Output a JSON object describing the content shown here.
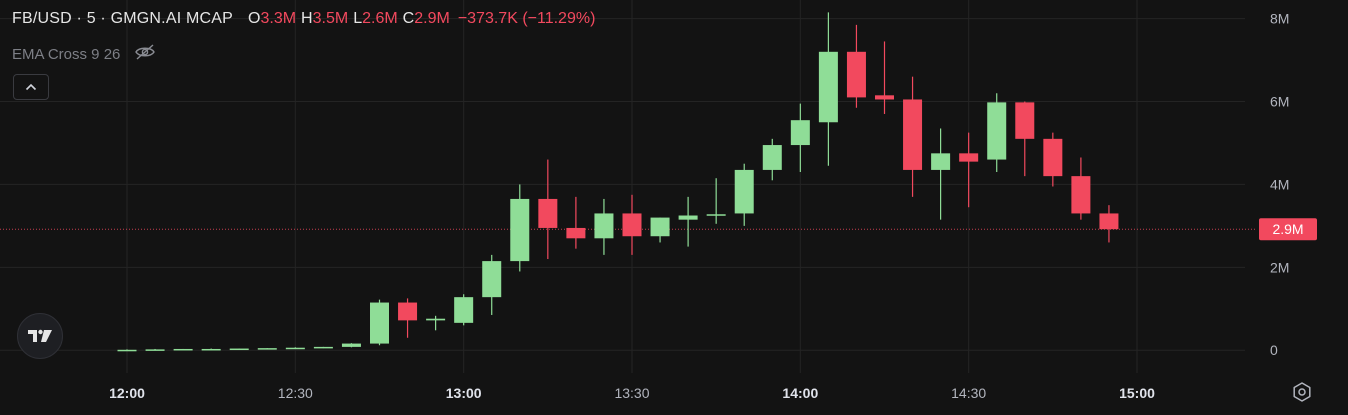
{
  "legend": {
    "symbol": "FB/USD · 5 · GMGN.AI MCAP",
    "open_label": "O",
    "open_value": "3.3M",
    "high_label": "H",
    "high_value": "3.5M",
    "low_label": "L",
    "low_value": "2.6M",
    "close_label": "C",
    "close_value": "2.9M",
    "change": "−373.7K (−11.29%)"
  },
  "indicator": {
    "label": "EMA Cross 9 26"
  },
  "icons": [
    "eye-off-icon",
    "chevron-up-icon",
    "tradingview-logo-icon",
    "gear-icon"
  ],
  "colors": {
    "background": "#131313",
    "up": "#8fdd97",
    "down": "#f2495e",
    "grid": "#242424",
    "axis_text": "#b2b5be"
  },
  "chart_data": {
    "type": "candlestick",
    "title": "FB/USD · 5 · GMGN.AI MCAP",
    "x_ticks": [
      "12:00",
      "12:30",
      "13:00",
      "13:30",
      "14:00",
      "14:30",
      "15:00"
    ],
    "y_ticks": [
      "0",
      "2M",
      "4M",
      "6M",
      "8M"
    ],
    "ylim": [
      -0.55,
      8.45
    ],
    "y_unit": "M",
    "grid": true,
    "last_price_label": "2.9M",
    "last_price": 2.92,
    "interval_minutes": 5,
    "candles": [
      {
        "time": "12:00",
        "o": 0.0,
        "h": 0.02,
        "l": 0.0,
        "c": 0.01
      },
      {
        "time": "12:05",
        "o": 0.01,
        "h": 0.03,
        "l": 0.0,
        "c": 0.02
      },
      {
        "time": "12:10",
        "o": 0.02,
        "h": 0.03,
        "l": 0.01,
        "c": 0.03
      },
      {
        "time": "12:15",
        "o": 0.03,
        "h": 0.04,
        "l": 0.02,
        "c": 0.03
      },
      {
        "time": "12:20",
        "o": 0.03,
        "h": 0.04,
        "l": 0.02,
        "c": 0.04
      },
      {
        "time": "12:25",
        "o": 0.04,
        "h": 0.05,
        "l": 0.03,
        "c": 0.05
      },
      {
        "time": "12:30",
        "o": 0.05,
        "h": 0.07,
        "l": 0.04,
        "c": 0.06
      },
      {
        "time": "12:35",
        "o": 0.06,
        "h": 0.08,
        "l": 0.05,
        "c": 0.08
      },
      {
        "time": "12:40",
        "o": 0.08,
        "h": 0.17,
        "l": 0.07,
        "c": 0.16
      },
      {
        "time": "12:45",
        "o": 0.16,
        "h": 1.22,
        "l": 0.12,
        "c": 1.15
      },
      {
        "time": "12:50",
        "o": 1.15,
        "h": 1.25,
        "l": 0.3,
        "c": 0.72
      },
      {
        "time": "12:55",
        "o": 0.72,
        "h": 0.83,
        "l": 0.48,
        "c": 0.76
      },
      {
        "time": "13:00",
        "o": 0.66,
        "h": 1.35,
        "l": 0.6,
        "c": 1.28
      },
      {
        "time": "13:05",
        "o": 1.28,
        "h": 2.3,
        "l": 0.85,
        "c": 2.15
      },
      {
        "time": "13:10",
        "o": 2.15,
        "h": 4.0,
        "l": 1.9,
        "c": 3.65
      },
      {
        "time": "13:15",
        "o": 3.65,
        "h": 4.6,
        "l": 2.2,
        "c": 2.95
      },
      {
        "time": "13:20",
        "o": 2.95,
        "h": 3.7,
        "l": 2.45,
        "c": 2.7
      },
      {
        "time": "13:25",
        "o": 2.7,
        "h": 3.65,
        "l": 2.3,
        "c": 3.3
      },
      {
        "time": "13:30",
        "o": 3.3,
        "h": 3.75,
        "l": 2.3,
        "c": 2.75
      },
      {
        "time": "13:35",
        "o": 2.75,
        "h": 3.2,
        "l": 2.6,
        "c": 3.2
      },
      {
        "time": "13:40",
        "o": 3.15,
        "h": 3.7,
        "l": 2.5,
        "c": 3.25
      },
      {
        "time": "13:45",
        "o": 3.25,
        "h": 4.15,
        "l": 3.05,
        "c": 3.28
      },
      {
        "time": "13:50",
        "o": 3.3,
        "h": 4.5,
        "l": 3.0,
        "c": 4.35
      },
      {
        "time": "13:55",
        "o": 4.35,
        "h": 5.1,
        "l": 4.1,
        "c": 4.95
      },
      {
        "time": "14:00",
        "o": 4.95,
        "h": 5.95,
        "l": 4.3,
        "c": 5.55
      },
      {
        "time": "14:05",
        "o": 5.5,
        "h": 8.15,
        "l": 4.45,
        "c": 7.2
      },
      {
        "time": "14:10",
        "o": 7.2,
        "h": 7.85,
        "l": 5.85,
        "c": 6.1
      },
      {
        "time": "14:15",
        "o": 6.15,
        "h": 7.45,
        "l": 5.7,
        "c": 6.05
      },
      {
        "time": "14:20",
        "o": 6.05,
        "h": 6.6,
        "l": 3.7,
        "c": 4.35
      },
      {
        "time": "14:25",
        "o": 4.35,
        "h": 5.35,
        "l": 3.15,
        "c": 4.75
      },
      {
        "time": "14:30",
        "o": 4.75,
        "h": 5.25,
        "l": 3.45,
        "c": 4.55
      },
      {
        "time": "14:35",
        "o": 4.6,
        "h": 6.2,
        "l": 4.3,
        "c": 5.98
      },
      {
        "time": "14:40",
        "o": 5.98,
        "h": 6.0,
        "l": 4.2,
        "c": 5.1
      },
      {
        "time": "14:45",
        "o": 5.1,
        "h": 5.25,
        "l": 3.95,
        "c": 4.2
      },
      {
        "time": "14:50",
        "o": 4.2,
        "h": 4.65,
        "l": 3.15,
        "c": 3.3
      },
      {
        "time": "14:55",
        "o": 3.3,
        "h": 3.5,
        "l": 2.6,
        "c": 2.92
      }
    ]
  }
}
